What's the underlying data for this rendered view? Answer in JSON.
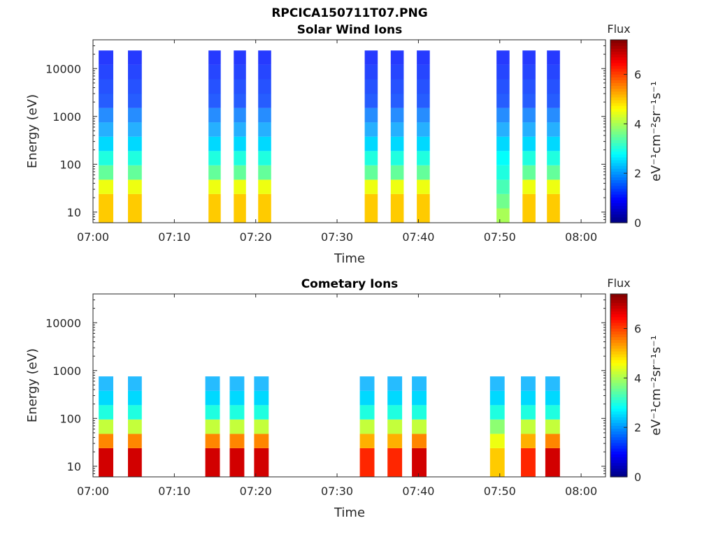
{
  "figure": {
    "title": "RPCICA150711T07.PNG"
  },
  "chart_data": [
    {
      "type": "heatmap",
      "title": "Solar Wind Ions",
      "xlabel": "Time",
      "ylabel": "Energy (eV)",
      "y_scale": "log",
      "ylim": [
        6,
        40000
      ],
      "xlim": [
        "07:00",
        "08:03"
      ],
      "x_ticks": [
        "07:00",
        "07:10",
        "07:20",
        "07:30",
        "07:40",
        "07:50",
        "08:00"
      ],
      "y_ticks": [
        "10",
        "100",
        "1000",
        "10000"
      ],
      "colorbar": {
        "title": "Flux",
        "label": "eV⁻¹cm⁻²sr⁻¹s⁻¹",
        "range": [
          0,
          7.4
        ],
        "ticks": [
          "0",
          "2",
          "4",
          "6"
        ],
        "colormap": "jet"
      },
      "bursts": [
        {
          "start": "07:00.7",
          "end": "07:02.5",
          "flux": [
            5,
            5,
            4.5,
            3.5,
            3,
            2.5,
            2.1,
            1.8,
            1.4,
            1.3,
            1.2,
            1.1
          ]
        },
        {
          "start": "07:04.3",
          "end": "07:06.0",
          "flux": [
            5,
            5,
            4.5,
            3.5,
            3,
            2.5,
            2.1,
            1.8,
            1.4,
            1.3,
            1.2,
            1.1
          ]
        },
        {
          "start": "07:14.2",
          "end": "07:15.7",
          "flux": [
            5,
            5,
            4.5,
            3.5,
            3,
            2.5,
            2.1,
            1.8,
            1.4,
            1.3,
            1.2,
            1.1
          ]
        },
        {
          "start": "07:17.3",
          "end": "07:18.8",
          "flux": [
            5,
            5,
            4.5,
            3.5,
            3,
            2.5,
            2.1,
            1.8,
            1.4,
            1.3,
            1.2,
            1.1
          ]
        },
        {
          "start": "07:20.3",
          "end": "07:21.9",
          "flux": [
            5,
            5,
            4.5,
            3.5,
            3,
            2.5,
            2.1,
            1.8,
            1.4,
            1.3,
            1.2,
            1.1
          ]
        },
        {
          "start": "07:33.4",
          "end": "07:35.0",
          "flux": [
            5,
            5,
            4.5,
            3.5,
            3,
            2.5,
            2.1,
            1.8,
            1.4,
            1.3,
            1.2,
            1.1
          ]
        },
        {
          "start": "07:36.6",
          "end": "07:38.2",
          "flux": [
            5,
            5,
            4.5,
            3.5,
            3,
            2.5,
            2.1,
            1.8,
            1.4,
            1.3,
            1.2,
            1.1
          ]
        },
        {
          "start": "07:39.8",
          "end": "07:41.4",
          "flux": [
            5,
            5,
            4.5,
            3.5,
            3,
            2.5,
            2.1,
            1.8,
            1.4,
            1.3,
            1.2,
            1.1
          ]
        },
        {
          "start": "07:49.6",
          "end": "07:51.2",
          "flux": [
            4,
            3.6,
            3.3,
            3,
            2.8,
            2.5,
            2.1,
            1.8,
            1.4,
            1.3,
            1.2,
            1.1
          ]
        },
        {
          "start": "07:52.8",
          "end": "07:54.4",
          "flux": [
            5,
            5,
            4.5,
            3.5,
            3,
            2.5,
            2.1,
            1.8,
            1.4,
            1.3,
            1.2,
            1.1
          ]
        },
        {
          "start": "07:55.8",
          "end": "07:57.4",
          "flux": [
            5,
            5,
            4.5,
            3.5,
            3,
            2.5,
            2.1,
            1.8,
            1.4,
            1.3,
            1.2,
            1.1
          ]
        }
      ]
    },
    {
      "type": "heatmap",
      "title": "Cometary Ions",
      "xlabel": "Time",
      "ylabel": "Energy (eV)",
      "y_scale": "log",
      "ylim": [
        6,
        40000
      ],
      "xlim": [
        "07:00",
        "08:03"
      ],
      "x_ticks": [
        "07:00",
        "07:10",
        "07:20",
        "07:30",
        "07:40",
        "07:50",
        "08:00"
      ],
      "y_ticks": [
        "10",
        "100",
        "1000",
        "10000"
      ],
      "colorbar": {
        "title": "Flux",
        "label": "eV⁻¹cm⁻²sr⁻¹s⁻¹",
        "range": [
          0,
          7.4
        ],
        "ticks": [
          "0",
          "2",
          "4",
          "6"
        ],
        "colormap": "jet"
      },
      "bursts": [
        {
          "start": "07:00.7",
          "end": "07:02.5",
          "flux": [
            6.8,
            6.8,
            5.5,
            4.2,
            3,
            2.5,
            2.2
          ]
        },
        {
          "start": "07:04.3",
          "end": "07:06.0",
          "flux": [
            6.8,
            6.8,
            5.5,
            4.2,
            3,
            2.5,
            2.2
          ]
        },
        {
          "start": "07:13.8",
          "end": "07:15.6",
          "flux": [
            6.8,
            6.8,
            5.5,
            4.2,
            3,
            2.5,
            2.2
          ]
        },
        {
          "start": "07:16.8",
          "end": "07:18.6",
          "flux": [
            6.8,
            6.8,
            5.5,
            4.2,
            3,
            2.5,
            2.2
          ]
        },
        {
          "start": "07:19.8",
          "end": "07:21.6",
          "flux": [
            6.8,
            6.8,
            5.5,
            4.2,
            3,
            2.5,
            2.2
          ]
        },
        {
          "start": "07:32.8",
          "end": "07:34.6",
          "flux": [
            6.2,
            6.2,
            5.2,
            4.2,
            3,
            2.5,
            2.2
          ]
        },
        {
          "start": "07:36.2",
          "end": "07:38.0",
          "flux": [
            6.2,
            6.2,
            5.2,
            4.2,
            3,
            2.5,
            2.2
          ]
        },
        {
          "start": "07:39.2",
          "end": "07:41.0",
          "flux": [
            6.8,
            6.8,
            5.5,
            4.2,
            3,
            2.5,
            2.2
          ]
        },
        {
          "start": "07:48.8",
          "end": "07:50.6",
          "flux": [
            5,
            5,
            4.5,
            3.8,
            3,
            2.5,
            2.2
          ]
        },
        {
          "start": "07:52.6",
          "end": "07:54.4",
          "flux": [
            6.2,
            6.2,
            5.2,
            4.2,
            3,
            2.5,
            2.2
          ]
        },
        {
          "start": "07:55.6",
          "end": "07:57.4",
          "flux": [
            6.8,
            6.8,
            5.5,
            4.2,
            3,
            2.5,
            2.2
          ]
        }
      ]
    }
  ]
}
